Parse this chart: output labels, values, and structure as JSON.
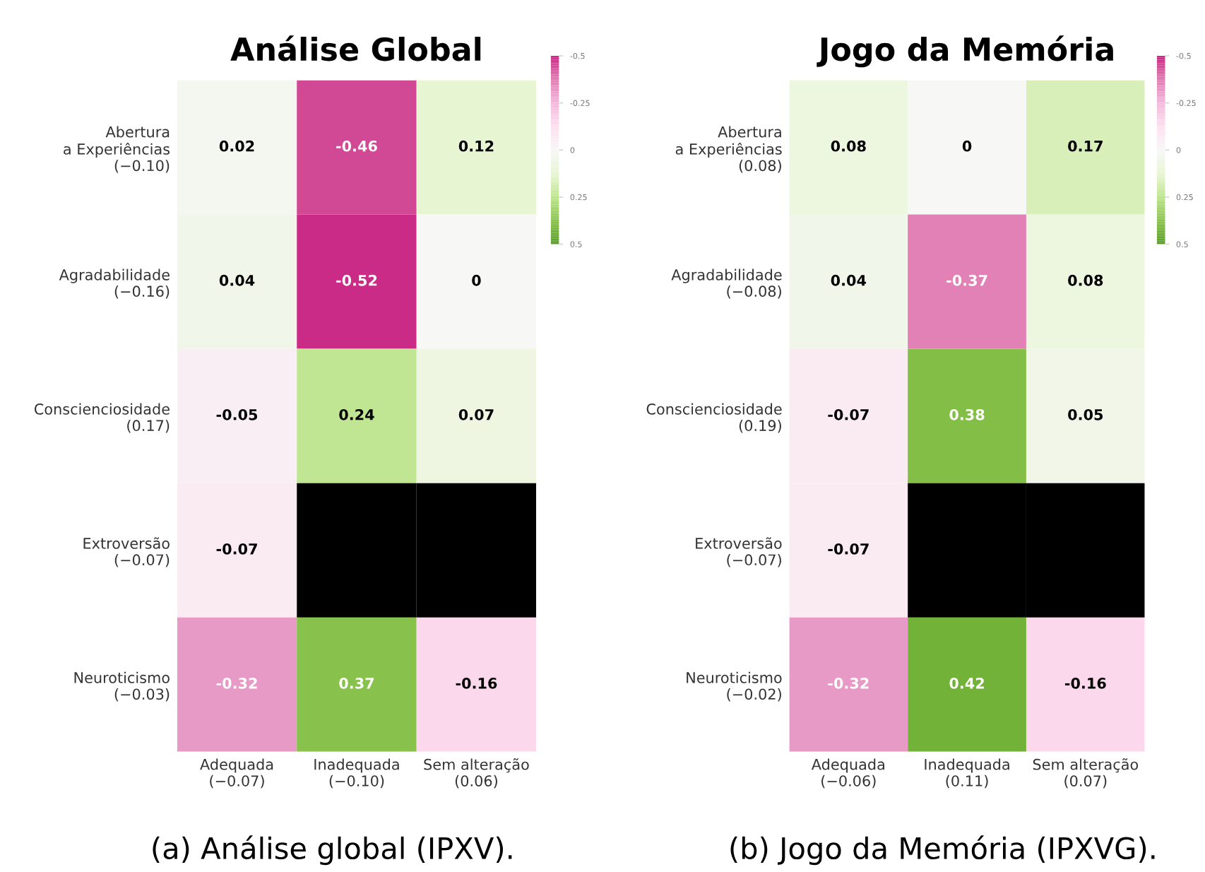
{
  "chart_data": [
    {
      "type": "heatmap",
      "title": "Análise Global",
      "categories": [
        "Adequada\n(−0.07)",
        "Inadequada\n(−0.10)",
        "Sem alteração\n(0.06)"
      ],
      "y_categories": [
        "Abertura\na Experiências\n(−0.10)",
        "Agradabilidade\n(−0.16)",
        "Conscienciosidade\n(0.17)",
        "Extroversão\n(−0.07)",
        "Neuroticismo\n(−0.03)"
      ],
      "cells": [
        [
          0.02,
          -0.46,
          0.12
        ],
        [
          0.04,
          -0.52,
          0
        ],
        [
          -0.05,
          0.24,
          0.07
        ],
        [
          -0.07,
          null,
          null
        ],
        [
          -0.32,
          0.37,
          -0.16
        ]
      ],
      "clim": [
        0.5,
        -0.5
      ],
      "cticks": [
        -0.5,
        -0.25,
        0,
        0.25,
        0.5
      ],
      "data_labels": true,
      "annotations": [
        "(a) Análise global (IPXV)."
      ]
    },
    {
      "type": "heatmap",
      "title": "Jogo da Memória",
      "categories": [
        "Adequada\n(−0.06)",
        "Inadequada\n(0.11)",
        "Sem alteração\n(0.07)"
      ],
      "y_categories": [
        "Abertura\na Experiências\n(0.08)",
        "Agradabilidade\n(−0.08)",
        "Conscienciosidade\n(0.19)",
        "Extroversão\n(−0.07)",
        "Neuroticismo\n(−0.02)"
      ],
      "cells": [
        [
          0.08,
          0,
          0.17
        ],
        [
          0.04,
          -0.37,
          0.08
        ],
        [
          -0.07,
          0.38,
          0.05
        ],
        [
          -0.07,
          null,
          null
        ],
        [
          -0.32,
          0.42,
          -0.16
        ]
      ],
      "clim": [
        0.5,
        -0.5
      ],
      "cticks": [
        -0.5,
        -0.25,
        0,
        0.25,
        0.5
      ],
      "data_labels": true,
      "annotations": [
        "(b) Jogo da Memória (IPXVG)."
      ]
    }
  ]
}
